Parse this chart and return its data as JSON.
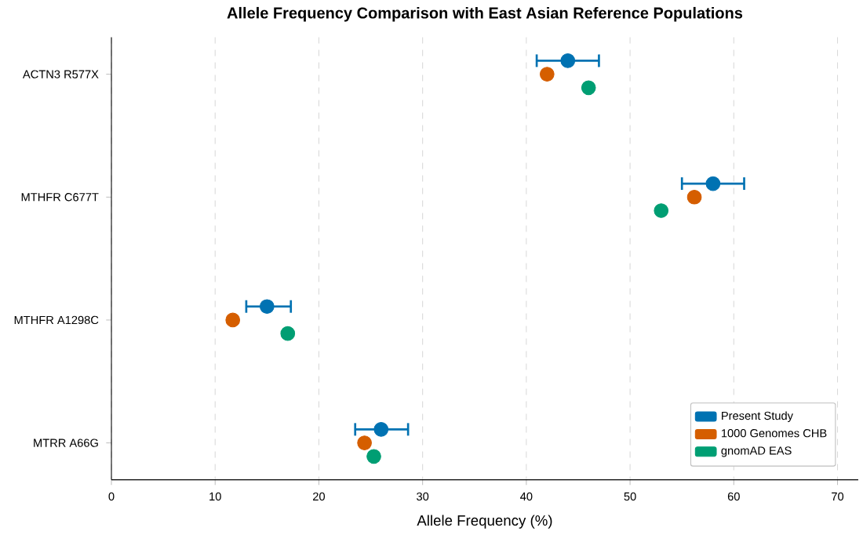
{
  "chart_data": {
    "type": "scatter",
    "orientation": "horizontal",
    "title": "Allele Frequency Comparison with East Asian Reference Populations",
    "xlabel": "Allele Frequency (%)",
    "categories": [
      "ACTN3 R577X",
      "MTHFR C677T",
      "MTHFR A1298C",
      "MTRR A66G"
    ],
    "xlim": [
      0,
      72
    ],
    "xticks": [
      0,
      10,
      20,
      30,
      40,
      50,
      60,
      70
    ],
    "grid": "x",
    "legend": "bottom right",
    "series": [
      {
        "name": "Present Study",
        "color": "#0072b2",
        "values": [
          44,
          58,
          15,
          26
        ],
        "errors": [
          [
            41,
            47
          ],
          [
            55,
            61
          ],
          [
            13,
            17.3
          ],
          [
            23.5,
            28.6
          ]
        ]
      },
      {
        "name": "1000 Genomes CHB",
        "color": "#d55e00",
        "values": [
          42,
          56.2,
          11.7,
          24.4
        ]
      },
      {
        "name": "gnomAD EAS",
        "color": "#009e73",
        "values": [
          46,
          53,
          17,
          25.3
        ]
      }
    ]
  }
}
